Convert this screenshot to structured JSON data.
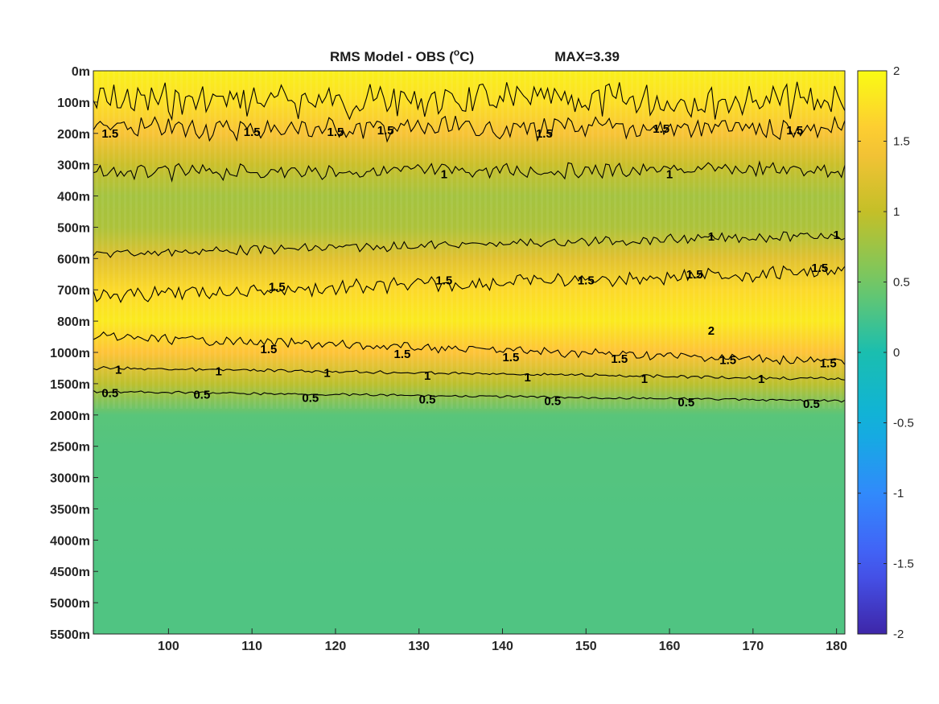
{
  "chart_data": {
    "type": "heatmap",
    "title": "RMS Model - OBS (",
    "title_unit_sup": "o",
    "title_unit_end": "C)",
    "max_label": "MAX=3.39",
    "xlabel": "",
    "ylabel": "",
    "xlim": [
      91,
      181
    ],
    "x_ticks": [
      "100",
      "110",
      "120",
      "130",
      "140",
      "150",
      "160",
      "170",
      "180"
    ],
    "x_tick_values": [
      100,
      110,
      120,
      130,
      140,
      150,
      160,
      170,
      180
    ],
    "y_tick_labels": [
      "0m",
      "100m",
      "200m",
      "300m",
      "400m",
      "500m",
      "600m",
      "700m",
      "800m",
      "1000m",
      "1500m",
      "2000m",
      "2500m",
      "3000m",
      "3500m",
      "4000m",
      "4500m",
      "5000m",
      "5500m"
    ],
    "colorbar": {
      "limits": [
        -2,
        2
      ],
      "ticks": [
        "2",
        "1.5",
        "1",
        "0.5",
        "0",
        "-0.5",
        "-1",
        "-1.5",
        "-2"
      ],
      "tick_values": [
        2,
        1.5,
        1,
        0.5,
        0,
        -0.5,
        -1,
        -1.5,
        -2
      ],
      "colormap": "parula"
    },
    "depth_profile": [
      {
        "level": 0,
        "value": 1.9
      },
      {
        "level": 1,
        "value": 1.75
      },
      {
        "level": 2,
        "value": 1.45
      },
      {
        "level": 3,
        "value": 1.05
      },
      {
        "level": 4,
        "value": 0.8
      },
      {
        "level": 5,
        "value": 0.85
      },
      {
        "level": 6,
        "value": 1.25
      },
      {
        "level": 7,
        "value": 1.7
      },
      {
        "level": 8,
        "value": 1.85
      },
      {
        "level": 9,
        "value": 1.5
      },
      {
        "level": 10,
        "value": 0.95
      },
      {
        "level": 11,
        "value": 0.35
      },
      {
        "level": 12,
        "value": 0.32
      },
      {
        "level": 13,
        "value": 0.32
      },
      {
        "level": 14,
        "value": 0.31
      },
      {
        "level": 15,
        "value": 0.31
      },
      {
        "level": 16,
        "value": 0.3
      },
      {
        "level": 17,
        "value": 0.3
      },
      {
        "level": 18,
        "value": 0.3
      }
    ],
    "contours": [
      {
        "level": "2",
        "x": [
          91,
          181
        ],
        "depth_level": [
          0.95,
          0.95
        ],
        "noise": 0.45
      },
      {
        "level": "1.5",
        "x": [
          91,
          181
        ],
        "depth_level": [
          1.85,
          1.85
        ],
        "noise": 0.3
      },
      {
        "level": "1",
        "x": [
          91,
          181
        ],
        "depth_level": [
          3.25,
          3.15
        ],
        "noise": 0.2
      },
      {
        "level": "1",
        "x": [
          91,
          181
        ],
        "depth_level": [
          5.85,
          5.25
        ],
        "noise": 0.12
      },
      {
        "level": "1.5",
        "x": [
          91,
          181
        ],
        "depth_level": [
          7.2,
          6.4
        ],
        "noise": 0.2
      },
      {
        "level": "1.5",
        "x": [
          91,
          181
        ],
        "depth_level": [
          8.5,
          9.3
        ],
        "noise": 0.12
      },
      {
        "level": "1",
        "x": [
          91,
          181
        ],
        "depth_level": [
          9.5,
          9.85
        ],
        "noise": 0.04
      },
      {
        "level": "0.5",
        "x": [
          91,
          181
        ],
        "depth_level": [
          10.25,
          10.55
        ],
        "noise": 0.03
      }
    ],
    "contour_labels": [
      {
        "text": "1.5",
        "x": 93,
        "depth_level": 2.0
      },
      {
        "text": "1.5",
        "x": 110,
        "depth_level": 1.95
      },
      {
        "text": "1.5",
        "x": 120,
        "depth_level": 1.95
      },
      {
        "text": "1.5",
        "x": 126,
        "depth_level": 1.9
      },
      {
        "text": "1.5",
        "x": 145,
        "depth_level": 2.0
      },
      {
        "text": "1.5",
        "x": 159,
        "depth_level": 1.85
      },
      {
        "text": "1.5",
        "x": 175,
        "depth_level": 1.9
      },
      {
        "text": "1",
        "x": 133,
        "depth_level": 3.3
      },
      {
        "text": "1",
        "x": 160,
        "depth_level": 3.3
      },
      {
        "text": "1",
        "x": 165,
        "depth_level": 5.3
      },
      {
        "text": "1",
        "x": 180,
        "depth_level": 5.25
      },
      {
        "text": "1.5",
        "x": 113,
        "depth_level": 6.9
      },
      {
        "text": "1.5",
        "x": 133,
        "depth_level": 6.7
      },
      {
        "text": "1.5",
        "x": 150,
        "depth_level": 6.7
      },
      {
        "text": "1.5",
        "x": 163,
        "depth_level": 6.5
      },
      {
        "text": "1.5",
        "x": 178,
        "depth_level": 6.3
      },
      {
        "text": "2",
        "x": 165,
        "depth_level": 8.3
      },
      {
        "text": "1.5",
        "x": 112,
        "depth_level": 8.9
      },
      {
        "text": "1.5",
        "x": 128,
        "depth_level": 9.05
      },
      {
        "text": "1.5",
        "x": 141,
        "depth_level": 9.15
      },
      {
        "text": "1.5",
        "x": 154,
        "depth_level": 9.2
      },
      {
        "text": "1.5",
        "x": 167,
        "depth_level": 9.25
      },
      {
        "text": "1.5",
        "x": 179,
        "depth_level": 9.35
      },
      {
        "text": "1",
        "x": 94,
        "depth_level": 9.55
      },
      {
        "text": "1",
        "x": 106,
        "depth_level": 9.6
      },
      {
        "text": "1",
        "x": 119,
        "depth_level": 9.65
      },
      {
        "text": "1",
        "x": 131,
        "depth_level": 9.75
      },
      {
        "text": "1",
        "x": 143,
        "depth_level": 9.8
      },
      {
        "text": "1",
        "x": 157,
        "depth_level": 9.85
      },
      {
        "text": "1",
        "x": 171,
        "depth_level": 9.85
      },
      {
        "text": "0.5",
        "x": 93,
        "depth_level": 10.3
      },
      {
        "text": "0.5",
        "x": 104,
        "depth_level": 10.35
      },
      {
        "text": "0.5",
        "x": 117,
        "depth_level": 10.45
      },
      {
        "text": "0.5",
        "x": 131,
        "depth_level": 10.5
      },
      {
        "text": "0.5",
        "x": 146,
        "depth_level": 10.55
      },
      {
        "text": "0.5",
        "x": 162,
        "depth_level": 10.6
      },
      {
        "text": "0.5",
        "x": 177,
        "depth_level": 10.65
      }
    ],
    "grid": false,
    "legend": "colorbar-right"
  }
}
